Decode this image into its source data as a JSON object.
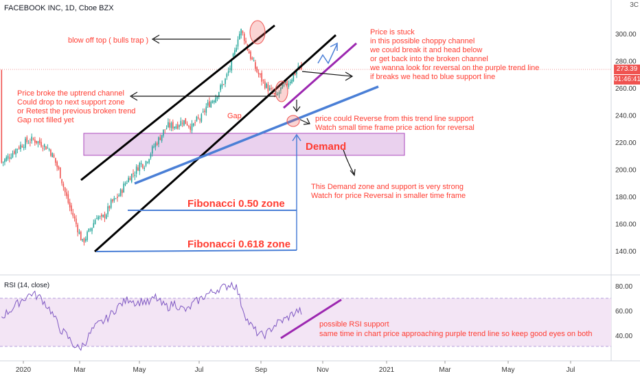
{
  "header": {
    "title": "FACEBOOK INC, 1D, Cboe BZX"
  },
  "corner_label": "3C",
  "last_price": {
    "value": "273.39",
    "color": "#ef5350"
  },
  "countdown": {
    "value": "01:46:41",
    "color": "#ef5350"
  },
  "colors": {
    "up": "#26a69a",
    "down": "#ef5350",
    "annotation": "#ff3b30",
    "purple_line": "#9c27b0",
    "blue_line": "#4a7fd6",
    "zone": "#e1bee7",
    "rsi_line": "#7e57c2",
    "rsi_band": "#f3e5f5"
  },
  "chart_data": [
    {
      "type": "candlestick",
      "title": "FACEBOOK INC, 1D, Cboe BZX",
      "ylim": [
        120,
        315
      ],
      "y_ticks": [
        "300.00",
        "280.00",
        "260.00",
        "240.00",
        "220.00",
        "200.00",
        "180.00",
        "160.00",
        "140.00"
      ],
      "x_ticks": [
        "2020",
        "Mar",
        "May",
        "Jul",
        "Sep",
        "Nov",
        "2021",
        "Mar",
        "May",
        "Jul"
      ],
      "close_path": [
        [
          1,
          205
        ],
        [
          6,
          210
        ],
        [
          11,
          216
        ],
        [
          16,
          220
        ],
        [
          21,
          222
        ],
        [
          26,
          219
        ],
        [
          31,
          215
        ],
        [
          34,
          208
        ],
        [
          38,
          196
        ],
        [
          41,
          183
        ],
        [
          44,
          172
        ],
        [
          47,
          163
        ],
        [
          50,
          153
        ],
        [
          52,
          146
        ],
        [
          55,
          152
        ],
        [
          58,
          158
        ],
        [
          61,
          166
        ],
        [
          64,
          163
        ],
        [
          67,
          168
        ],
        [
          70,
          175
        ],
        [
          73,
          178
        ],
        [
          76,
          183
        ],
        [
          79,
          190
        ],
        [
          82,
          195
        ],
        [
          85,
          198
        ],
        [
          88,
          204
        ],
        [
          91,
          204
        ],
        [
          94,
          210
        ],
        [
          97,
          217
        ],
        [
          100,
          222
        ],
        [
          103,
          228
        ],
        [
          106,
          232
        ],
        [
          109,
          232
        ],
        [
          112,
          233
        ],
        [
          115,
          236
        ],
        [
          118,
          234
        ],
        [
          121,
          231
        ],
        [
          124,
          236
        ],
        [
          127,
          238
        ],
        [
          130,
          246
        ],
        [
          133,
          250
        ],
        [
          136,
          254
        ],
        [
          139,
          260
        ],
        [
          142,
          266
        ],
        [
          145,
          275
        ],
        [
          148,
          286
        ],
        [
          150,
          298
        ],
        [
          152,
          302
        ],
        [
          154,
          297
        ],
        [
          156,
          289
        ],
        [
          159,
          280
        ],
        [
          162,
          272
        ],
        [
          165,
          266
        ],
        [
          168,
          261
        ],
        [
          171,
          257
        ],
        [
          174,
          253
        ],
        [
          177,
          259
        ],
        [
          180,
          262
        ],
        [
          183,
          266
        ],
        [
          186,
          271
        ],
        [
          188,
          276
        ],
        [
          190,
          273
        ]
      ]
    },
    {
      "type": "line",
      "title": "RSI (14, close)",
      "ylim": [
        25,
        90
      ],
      "y_ticks": [
        "80.00",
        "60.00",
        "40.00"
      ],
      "values_path": [
        [
          1,
          55
        ],
        [
          8,
          62
        ],
        [
          14,
          69
        ],
        [
          20,
          74
        ],
        [
          26,
          70
        ],
        [
          32,
          60
        ],
        [
          38,
          45
        ],
        [
          42,
          40
        ],
        [
          46,
          33
        ],
        [
          50,
          29
        ],
        [
          54,
          35
        ],
        [
          58,
          44
        ],
        [
          62,
          49
        ],
        [
          66,
          52
        ],
        [
          70,
          57
        ],
        [
          74,
          63
        ],
        [
          78,
          67
        ],
        [
          82,
          70
        ],
        [
          86,
          66
        ],
        [
          90,
          68
        ],
        [
          94,
          66
        ],
        [
          98,
          71
        ],
        [
          102,
          65
        ],
        [
          106,
          63
        ],
        [
          110,
          66
        ],
        [
          114,
          62
        ],
        [
          118,
          60
        ],
        [
          122,
          66
        ],
        [
          126,
          69
        ],
        [
          130,
          73
        ],
        [
          134,
          75
        ],
        [
          138,
          78
        ],
        [
          142,
          79
        ],
        [
          146,
          82
        ],
        [
          149,
          79
        ],
        [
          152,
          66
        ],
        [
          156,
          52
        ],
        [
          160,
          45
        ],
        [
          164,
          40
        ],
        [
          168,
          41
        ],
        [
          172,
          47
        ],
        [
          176,
          51
        ],
        [
          180,
          53
        ],
        [
          184,
          57
        ],
        [
          188,
          60
        ],
        [
          190,
          59
        ]
      ]
    }
  ],
  "annotations": {
    "blow_off_top": "blow off top ( bulls trap )",
    "broke_channel": [
      "Price broke the uptrend channel",
      "Could drop to next support zone",
      "or Retest the previous broken trend",
      "Gap not filled yet"
    ],
    "gap": "Gap",
    "stuck": [
      "Price is stuck",
      "in this possible choppy channel",
      "we could break it and head below",
      "or get back into the broken channel",
      "we wanna look for reversal on the purple trend line",
      "if breaks we head to blue support line"
    ],
    "reverse": [
      "price could Reverse from this trend line support",
      "Watch small time frame price action for reversal"
    ],
    "demand": "Demand",
    "demand_note": [
      "This Demand zone and support is very strong",
      "Watch for price Reversal in smaller time frame"
    ],
    "fib_050": "Fibonacci 0.50 zone",
    "fib_0618": "Fibonacci 0.618 zone",
    "rsi_note": [
      "possible RSI support",
      "same time in chart price approaching purple trend line so keep good eyes on both"
    ]
  }
}
